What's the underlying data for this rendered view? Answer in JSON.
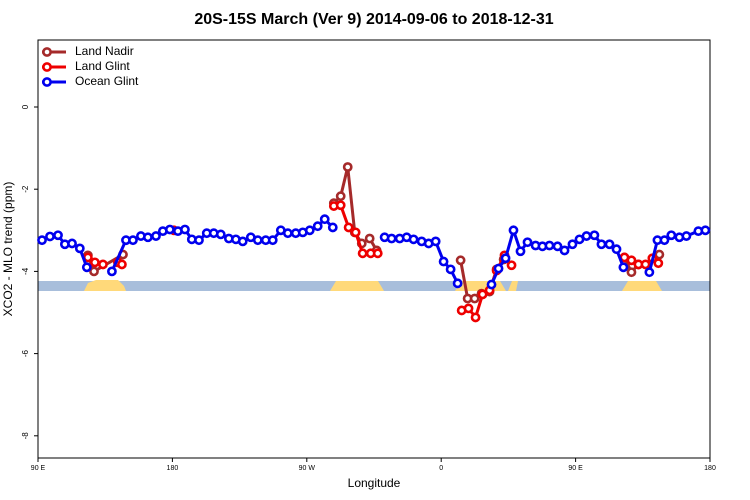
{
  "chart_data": {
    "type": "line",
    "title": "20S-15S March (Ver 9)   2014-09-06 to 2018-12-31",
    "xlabel": "Longitude",
    "ylabel": "XCO2 - MLO trend (ppm)",
    "xlim": [
      90,
      540
    ],
    "ylim": [
      -8.54,
      1.63
    ],
    "xticks": [
      {
        "value": 90,
        "label": "90 E"
      },
      180,
      {
        "value": 270,
        "label": "90 W"
      },
      {
        "value": 360,
        "label": "0"
      },
      {
        "value": 450,
        "label": "90 E"
      },
      {
        "value": 540,
        "label": "180"
      }
    ],
    "yticks": [
      0,
      -2,
      -4,
      -6,
      -8
    ],
    "legend": "top-left",
    "series": [
      {
        "name": "Land Nadir",
        "color": "#a52a2a",
        "x": [
          123.4,
          127.5,
          146.9,
          null,
          288.1,
          292.7,
          297.4,
          302.1,
          306.8,
          312.1,
          316.8,
          null,
          373,
          377.7,
          382.4,
          387,
          392.4,
          397.1,
          401.8,
          null,
          482.7,
          487.4,
          492.1,
          null,
          506.1
        ],
        "values": [
          -3.61,
          -4.0,
          -3.59,
          null,
          -2.34,
          -2.17,
          -1.46,
          -3.05,
          -3.32,
          -3.2,
          -3.49,
          null,
          -3.73,
          -4.66,
          -4.66,
          -4.54,
          -4.49,
          -3.95,
          -3.71,
          null,
          -3.66,
          -4.02,
          -3.83,
          null,
          -3.59
        ]
      },
      {
        "name": "Land Glint",
        "color": "#ee0000",
        "x": [
          123.4,
          128.1,
          133.5,
          null,
          143.5,
          146.2,
          null,
          181,
          null,
          288.1,
          292.7,
          298,
          302.7,
          307.4,
          312.8,
          317.5,
          null,
          373.7,
          378.3,
          383,
          387.7,
          392.4,
          397.1,
          402.4,
          407.1,
          null,
          482.7,
          487.4,
          492.1,
          496.8,
          501.4,
          505.4
        ],
        "values": [
          -3.66,
          -3.78,
          -3.83,
          null,
          -3.78,
          -3.83,
          null,
          -3.0,
          null,
          -2.41,
          -2.39,
          -2.93,
          -3.05,
          -3.56,
          -3.56,
          -3.56,
          null,
          -4.95,
          -4.9,
          -5.12,
          -4.56,
          -4.46,
          -3.98,
          -3.61,
          -3.85,
          null,
          -3.66,
          -3.73,
          -3.83,
          -3.83,
          -3.68,
          -3.8
        ]
      },
      {
        "name": "Ocean Glint",
        "color": "#0000ee",
        "x": [
          92.7,
          98,
          103.4,
          108,
          112.8,
          118,
          122.7,
          null,
          139.5,
          148.9,
          153.6,
          158.9,
          163.6,
          169,
          173.6,
          178.3,
          183.7,
          188.4,
          193,
          197.8,
          203,
          207.7,
          212.4,
          217.8,
          222.5,
          227.1,
          232.5,
          237.2,
          242.5,
          247.2,
          252.6,
          257.3,
          262.6,
          267.3,
          272,
          277.3,
          282,
          287.4,
          null,
          322.1,
          326.8,
          332.2,
          336.9,
          341.5,
          346.9,
          351.6,
          356.3,
          361.6,
          366.3,
          371,
          null,
          393.7,
          398.4,
          403.1,
          408.4,
          413.1,
          417.8,
          423.2,
          427.8,
          432.5,
          437.9,
          442.6,
          447.9,
          452.6,
          457.3,
          462.6,
          467.3,
          472.7,
          477.4,
          482,
          null,
          499.4,
          504.8,
          509.5,
          514.1,
          519.5,
          524.2,
          532.2,
          536.9
        ],
        "values": [
          -3.24,
          -3.15,
          -3.12,
          -3.34,
          -3.32,
          -3.44,
          -3.9,
          null,
          -4.0,
          -3.24,
          -3.24,
          -3.14,
          -3.17,
          -3.14,
          -3.02,
          -2.98,
          -3.02,
          -2.98,
          -3.22,
          -3.24,
          -3.07,
          -3.07,
          -3.1,
          -3.2,
          -3.22,
          -3.27,
          -3.17,
          -3.24,
          -3.24,
          -3.24,
          -3.0,
          -3.07,
          -3.07,
          -3.05,
          -3.0,
          -2.9,
          -2.73,
          -2.93,
          null,
          -3.17,
          -3.2,
          -3.2,
          -3.17,
          -3.22,
          -3.27,
          -3.32,
          -3.27,
          -3.76,
          -3.95,
          -4.29,
          null,
          -4.32,
          -3.93,
          -3.68,
          -3.0,
          -3.51,
          -3.29,
          -3.37,
          -3.39,
          -3.37,
          -3.39,
          -3.49,
          -3.34,
          -3.22,
          -3.14,
          -3.12,
          -3.34,
          -3.34,
          -3.46,
          -3.9,
          null,
          -4.02,
          -3.24,
          -3.24,
          -3.12,
          -3.17,
          -3.14,
          -3.02,
          -3.0
        ]
      }
    ]
  }
}
